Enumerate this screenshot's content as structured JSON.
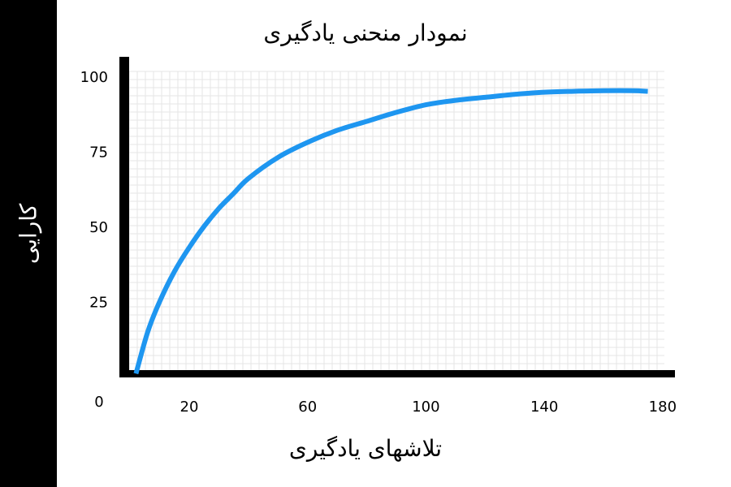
{
  "chart_data": {
    "type": "line",
    "title": "نمودار منحنی یادگیری",
    "xlabel": "تلاشهای یادگیری",
    "ylabel": "کارایی",
    "origin_label": "0",
    "x_ticks": [
      20,
      60,
      100,
      140,
      180
    ],
    "y_ticks": [
      25,
      50,
      75,
      100
    ],
    "xlim": [
      0,
      180
    ],
    "ylim": [
      0,
      100
    ],
    "grid": true,
    "series": [
      {
        "x": [
          2,
          6,
          10,
          15,
          20,
          25,
          30,
          35,
          40,
          50,
          60,
          70,
          80,
          90,
          100,
          110,
          120,
          130,
          140,
          150,
          160,
          170,
          175
        ],
        "y": [
          1,
          15,
          25,
          35,
          43,
          50,
          56,
          61,
          66,
          73,
          78,
          82,
          85,
          88,
          90.5,
          92,
          93,
          94,
          94.7,
          95,
          95.2,
          95.2,
          95
        ],
        "color": "#1e96f0"
      }
    ]
  }
}
